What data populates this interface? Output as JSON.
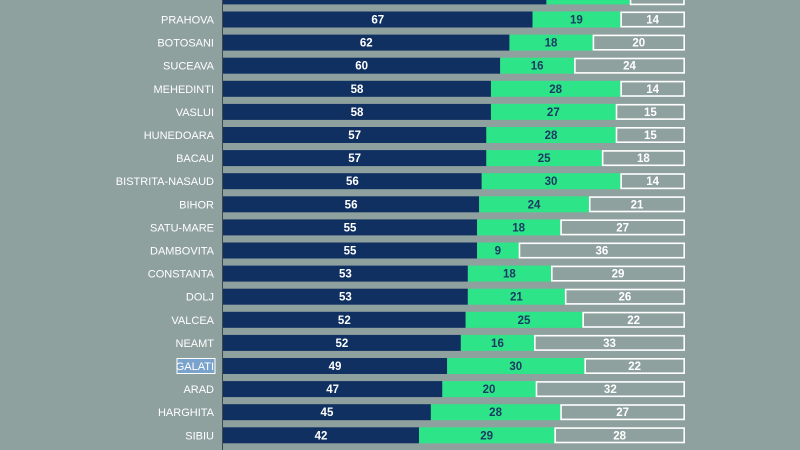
{
  "chart_data": {
    "type": "bar",
    "orientation": "horizontal",
    "stacked": true,
    "normalized_percent": true,
    "categories": [
      "PRAHOVA",
      "BOTOSANI",
      "SUCEAVA",
      "MEHEDINTI",
      "VASLUI",
      "HUNEDOARA",
      "BACAU",
      "BISTRITA-NASAUD",
      "BIHOR",
      "SATU-MARE",
      "DAMBOVITA",
      "CONSTANTA",
      "DOLJ",
      "VALCEA",
      "NEAMT",
      "GALATI",
      "ARAD",
      "HARGHITA",
      "SIBIU"
    ],
    "highlighted_category": "GALATI",
    "series": [
      {
        "values": [
          67,
          62,
          60,
          58,
          58,
          57,
          57,
          56,
          56,
          55,
          55,
          53,
          53,
          52,
          52,
          49,
          47,
          45,
          42
        ],
        "color": "#0f3061"
      },
      {
        "values": [
          19,
          18,
          16,
          28,
          27,
          28,
          25,
          30,
          24,
          18,
          9,
          18,
          21,
          25,
          16,
          30,
          20,
          28,
          29
        ],
        "color": "#2ee488"
      },
      {
        "values": [
          14,
          20,
          24,
          14,
          15,
          15,
          18,
          14,
          21,
          27,
          36,
          29,
          26,
          22,
          33,
          22,
          32,
          27,
          28
        ],
        "color": "#8fa19e",
        "outline": "#ffffff"
      }
    ],
    "xlim": [
      0,
      100
    ],
    "grid": false,
    "legend": "none"
  }
}
